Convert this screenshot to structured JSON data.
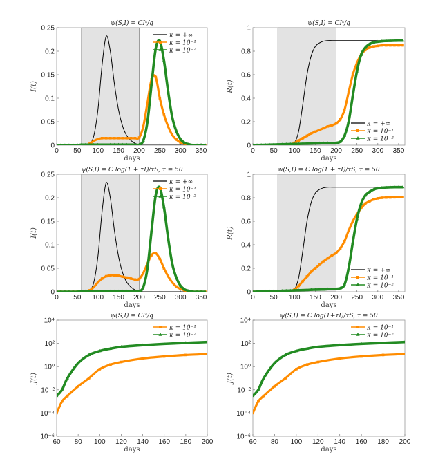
{
  "colors": {
    "black": "#000000",
    "orange": "#ff8c00",
    "green": "#228b22",
    "shade": "#e3e3e3"
  },
  "legend_labels": {
    "inf": "κ = +∞",
    "k1": "κ = 10⁻¹",
    "k2": "κ = 10⁻²"
  },
  "chart_data": [
    {
      "type": "line",
      "title": "ψ(S,I) = CIˢ/q",
      "xlabel": "days",
      "ylabel": "I(t)",
      "xlim": [
        0,
        365
      ],
      "ylim": [
        0,
        0.25
      ],
      "xticks": [
        0,
        50,
        100,
        150,
        200,
        250,
        300,
        350
      ],
      "yticks": [
        0,
        0.05,
        0.1,
        0.15,
        0.2,
        0.25
      ],
      "ytick_labels": [
        "0",
        "0.05",
        "0.1",
        "0.15",
        "0.2",
        "0.25"
      ],
      "shaded_interval": [
        60,
        200
      ],
      "legend": "top-right",
      "yscale": "linear",
      "x": [
        0,
        10,
        20,
        30,
        40,
        50,
        60,
        70,
        80,
        90,
        100,
        110,
        120,
        130,
        140,
        150,
        160,
        170,
        180,
        190,
        200,
        210,
        220,
        230,
        240,
        250,
        260,
        270,
        280,
        290,
        300,
        310,
        320,
        330,
        340,
        350,
        360
      ],
      "series": [
        {
          "name": "κ = +∞",
          "color": "black",
          "values": [
            0,
            0,
            0,
            0,
            0,
            0,
            0,
            0,
            0.003,
            0.02,
            0.075,
            0.17,
            0.232,
            0.2,
            0.13,
            0.075,
            0.04,
            0.02,
            0.01,
            0.004,
            0.001,
            0,
            0,
            0,
            0,
            0,
            0,
            0,
            0,
            0,
            0,
            0,
            0,
            0,
            0,
            0,
            0
          ]
        },
        {
          "name": "κ = 10⁻¹",
          "color": "orange",
          "values": [
            0,
            0,
            0,
            0,
            0,
            0,
            0,
            0,
            0.003,
            0.009,
            0.013,
            0.015,
            0.015,
            0.015,
            0.015,
            0.015,
            0.015,
            0.015,
            0.015,
            0.015,
            0.016,
            0.04,
            0.09,
            0.14,
            0.145,
            0.1,
            0.065,
            0.04,
            0.022,
            0.012,
            0.006,
            0.003,
            0.001,
            0,
            0,
            0,
            0
          ]
        },
        {
          "name": "κ = 10⁻²",
          "color": "green",
          "values": [
            0,
            0,
            0,
            0,
            0,
            0,
            0.001,
            0.001,
            0.001,
            0.001,
            0.001,
            0.001,
            0.001,
            0.001,
            0.001,
            0.001,
            0.001,
            0.001,
            0.001,
            0.001,
            0.001,
            0.01,
            0.05,
            0.13,
            0.205,
            0.222,
            0.18,
            0.115,
            0.06,
            0.03,
            0.013,
            0.005,
            0.002,
            0,
            0,
            0,
            0
          ]
        }
      ]
    },
    {
      "type": "line",
      "title": "ψ(S,I) = CIˢ/q",
      "xlabel": "days",
      "ylabel": "R(t)",
      "xlim": [
        0,
        365
      ],
      "ylim": [
        0,
        1
      ],
      "xticks": [
        0,
        50,
        100,
        150,
        200,
        250,
        300,
        350
      ],
      "yticks": [
        0,
        0.2,
        0.4,
        0.6,
        0.8,
        1
      ],
      "ytick_labels": [
        "0",
        "0.2",
        "0.4",
        "0.6",
        "0.8",
        "1"
      ],
      "shaded_interval": [
        60,
        200
      ],
      "legend": "bottom-right",
      "yscale": "linear",
      "x": [
        0,
        10,
        20,
        30,
        40,
        50,
        60,
        70,
        80,
        90,
        100,
        110,
        120,
        130,
        140,
        150,
        160,
        170,
        180,
        190,
        200,
        210,
        220,
        230,
        240,
        250,
        260,
        270,
        280,
        290,
        300,
        310,
        320,
        330,
        340,
        350,
        360
      ],
      "series": [
        {
          "name": "κ = +∞",
          "color": "black",
          "values": [
            0,
            0,
            0,
            0,
            0,
            0,
            0,
            0,
            0,
            0.003,
            0.02,
            0.12,
            0.35,
            0.6,
            0.76,
            0.84,
            0.87,
            0.885,
            0.89,
            0.89,
            0.89,
            0.89,
            0.89,
            0.89,
            0.89,
            0.89,
            0.89,
            0.89,
            0.89,
            0.89,
            0.89,
            0.89,
            0.89,
            0.89,
            0.89,
            0.89,
            0.89
          ]
        },
        {
          "name": "κ = 10⁻¹",
          "color": "orange",
          "values": [
            0,
            0,
            0,
            0,
            0,
            0,
            0,
            0,
            0,
            0.005,
            0.02,
            0.04,
            0.06,
            0.08,
            0.1,
            0.115,
            0.13,
            0.145,
            0.16,
            0.17,
            0.185,
            0.22,
            0.3,
            0.45,
            0.6,
            0.7,
            0.77,
            0.81,
            0.83,
            0.84,
            0.845,
            0.85,
            0.85,
            0.85,
            0.85,
            0.85,
            0.85
          ]
        },
        {
          "name": "κ = 10⁻²",
          "color": "green",
          "values": [
            0,
            0.001,
            0.002,
            0.003,
            0.004,
            0.005,
            0.006,
            0.007,
            0.008,
            0.009,
            0.01,
            0.011,
            0.012,
            0.013,
            0.014,
            0.015,
            0.016,
            0.017,
            0.018,
            0.019,
            0.02,
            0.03,
            0.08,
            0.2,
            0.42,
            0.63,
            0.77,
            0.83,
            0.86,
            0.875,
            0.88,
            0.885,
            0.887,
            0.888,
            0.889,
            0.89,
            0.89
          ]
        }
      ]
    },
    {
      "type": "line",
      "title": "ψ(S,I) = C log(1 + τI)/τS, τ = 50",
      "xlabel": "days",
      "ylabel": "I(t)",
      "xlim": [
        0,
        365
      ],
      "ylim": [
        0,
        0.25
      ],
      "xticks": [
        0,
        50,
        100,
        150,
        200,
        250,
        300,
        350
      ],
      "yticks": [
        0,
        0.05,
        0.1,
        0.15,
        0.2,
        0.25
      ],
      "ytick_labels": [
        "0",
        "0.05",
        "0.1",
        "0.15",
        "0.2",
        "0.25"
      ],
      "shaded_interval": [
        60,
        200
      ],
      "legend": "top-right",
      "yscale": "linear",
      "x": [
        0,
        10,
        20,
        30,
        40,
        50,
        60,
        70,
        80,
        90,
        100,
        110,
        120,
        130,
        140,
        150,
        160,
        170,
        180,
        190,
        200,
        210,
        220,
        230,
        240,
        250,
        260,
        270,
        280,
        290,
        300,
        310,
        320,
        330,
        340,
        350,
        360
      ],
      "series": [
        {
          "name": "κ = +∞",
          "color": "black",
          "values": [
            0,
            0,
            0,
            0,
            0,
            0,
            0,
            0,
            0.003,
            0.02,
            0.075,
            0.17,
            0.232,
            0.2,
            0.13,
            0.075,
            0.04,
            0.02,
            0.01,
            0.004,
            0.001,
            0,
            0,
            0,
            0,
            0,
            0,
            0,
            0,
            0,
            0,
            0,
            0,
            0,
            0,
            0,
            0
          ]
        },
        {
          "name": "κ = 10⁻¹",
          "color": "orange",
          "values": [
            0,
            0,
            0,
            0,
            0,
            0,
            0,
            0,
            0.003,
            0.01,
            0.02,
            0.028,
            0.033,
            0.035,
            0.035,
            0.034,
            0.032,
            0.03,
            0.028,
            0.026,
            0.027,
            0.04,
            0.06,
            0.078,
            0.082,
            0.07,
            0.05,
            0.033,
            0.02,
            0.011,
            0.006,
            0.003,
            0.001,
            0,
            0,
            0,
            0
          ]
        },
        {
          "name": "κ = 10⁻²",
          "color": "green",
          "values": [
            0,
            0,
            0,
            0,
            0,
            0,
            0.001,
            0.001,
            0.001,
            0.001,
            0.001,
            0.001,
            0.001,
            0.001,
            0.001,
            0.001,
            0.001,
            0.001,
            0.001,
            0.001,
            0.001,
            0.01,
            0.05,
            0.13,
            0.205,
            0.222,
            0.18,
            0.115,
            0.06,
            0.03,
            0.013,
            0.005,
            0.002,
            0,
            0,
            0,
            0
          ]
        }
      ]
    },
    {
      "type": "line",
      "title": "ψ(S,I) = C log(1 + τI)/τS, τ = 50",
      "xlabel": "days",
      "ylabel": "R(t)",
      "xlim": [
        0,
        365
      ],
      "ylim": [
        0,
        1
      ],
      "xticks": [
        0,
        50,
        100,
        150,
        200,
        250,
        300,
        350
      ],
      "yticks": [
        0,
        0.2,
        0.4,
        0.6,
        0.8,
        1
      ],
      "ytick_labels": [
        "0",
        "0.2",
        "0.4",
        "0.6",
        "0.8",
        "1"
      ],
      "shaded_interval": [
        60,
        200
      ],
      "legend": "bottom-right",
      "yscale": "linear",
      "x": [
        0,
        10,
        20,
        30,
        40,
        50,
        60,
        70,
        80,
        90,
        100,
        110,
        120,
        130,
        140,
        150,
        160,
        170,
        180,
        190,
        200,
        210,
        220,
        230,
        240,
        250,
        260,
        270,
        280,
        290,
        300,
        310,
        320,
        330,
        340,
        350,
        360
      ],
      "series": [
        {
          "name": "κ = +∞",
          "color": "black",
          "values": [
            0,
            0,
            0,
            0,
            0,
            0,
            0,
            0,
            0,
            0.003,
            0.02,
            0.12,
            0.35,
            0.6,
            0.76,
            0.84,
            0.87,
            0.885,
            0.89,
            0.89,
            0.89,
            0.89,
            0.89,
            0.89,
            0.89,
            0.89,
            0.89,
            0.89,
            0.89,
            0.89,
            0.89,
            0.89,
            0.89,
            0.89,
            0.89,
            0.89,
            0.89
          ]
        },
        {
          "name": "κ = 10⁻¹",
          "color": "orange",
          "values": [
            0,
            0,
            0,
            0,
            0,
            0,
            0,
            0,
            0,
            0.005,
            0.02,
            0.05,
            0.09,
            0.13,
            0.17,
            0.2,
            0.23,
            0.26,
            0.285,
            0.31,
            0.33,
            0.37,
            0.43,
            0.52,
            0.6,
            0.66,
            0.71,
            0.75,
            0.77,
            0.785,
            0.795,
            0.8,
            0.802,
            0.803,
            0.804,
            0.805,
            0.805
          ]
        },
        {
          "name": "κ = 10⁻²",
          "color": "green",
          "values": [
            0,
            0.001,
            0.002,
            0.003,
            0.004,
            0.005,
            0.006,
            0.008,
            0.009,
            0.01,
            0.012,
            0.013,
            0.014,
            0.015,
            0.017,
            0.018,
            0.019,
            0.02,
            0.022,
            0.023,
            0.025,
            0.03,
            0.06,
            0.2,
            0.42,
            0.62,
            0.75,
            0.82,
            0.85,
            0.87,
            0.88,
            0.885,
            0.888,
            0.889,
            0.89,
            0.89,
            0.89
          ]
        }
      ]
    },
    {
      "type": "line",
      "title": "ψ(S,I) = CIˢ/q",
      "xlabel": "days",
      "ylabel": "J(t)",
      "xlim": [
        60,
        200
      ],
      "ylim": [
        1e-06,
        10000.0
      ],
      "xticks": [
        60,
        80,
        100,
        120,
        140,
        160,
        180,
        200
      ],
      "yticks": [
        1e-06,
        0.0001,
        0.01,
        1,
        100.0,
        10000.0
      ],
      "ytick_labels": [
        "10⁻⁶",
        "10⁻⁴",
        "10⁻²",
        "10⁰",
        "10²",
        "10⁴"
      ],
      "legend": "top-right",
      "yscale": "log",
      "x": [
        60,
        65,
        70,
        80,
        90,
        100,
        110,
        120,
        140,
        160,
        180,
        200
      ],
      "series": [
        {
          "name": "κ = 10⁻¹",
          "color": "orange",
          "values": [
            0.0001,
            0.001,
            0.003,
            0.02,
            0.1,
            0.6,
            1.5,
            2.5,
            5,
            7.5,
            10,
            12
          ]
        },
        {
          "name": "κ = 10⁻²",
          "color": "green",
          "values": [
            0.003,
            0.01,
            0.1,
            2,
            10,
            22,
            35,
            50,
            70,
            90,
            110,
            130
          ]
        }
      ]
    },
    {
      "type": "line",
      "title": "ψ(S,I) = C log(1+τI)/τS, τ = 50",
      "xlabel": "days",
      "ylabel": "J(t)",
      "xlim": [
        60,
        200
      ],
      "ylim": [
        1e-06,
        10000.0
      ],
      "xticks": [
        60,
        80,
        100,
        120,
        140,
        160,
        180,
        200
      ],
      "yticks": [
        1e-06,
        0.0001,
        0.01,
        1,
        100.0,
        10000.0
      ],
      "ytick_labels": [
        "10⁻⁶",
        "10⁻⁴",
        "10⁻²",
        "10⁰",
        "10²",
        "10⁴"
      ],
      "legend": "top-right",
      "yscale": "log",
      "x": [
        60,
        65,
        70,
        80,
        90,
        100,
        110,
        120,
        140,
        160,
        180,
        200
      ],
      "series": [
        {
          "name": "κ = 10⁻¹",
          "color": "orange",
          "values": [
            0.0001,
            0.001,
            0.003,
            0.02,
            0.1,
            0.6,
            1.5,
            2.5,
            5,
            7.5,
            10,
            12
          ]
        },
        {
          "name": "κ = 10⁻²",
          "color": "green",
          "values": [
            0.003,
            0.01,
            0.1,
            2,
            10,
            22,
            35,
            50,
            70,
            90,
            110,
            130
          ]
        }
      ]
    }
  ]
}
